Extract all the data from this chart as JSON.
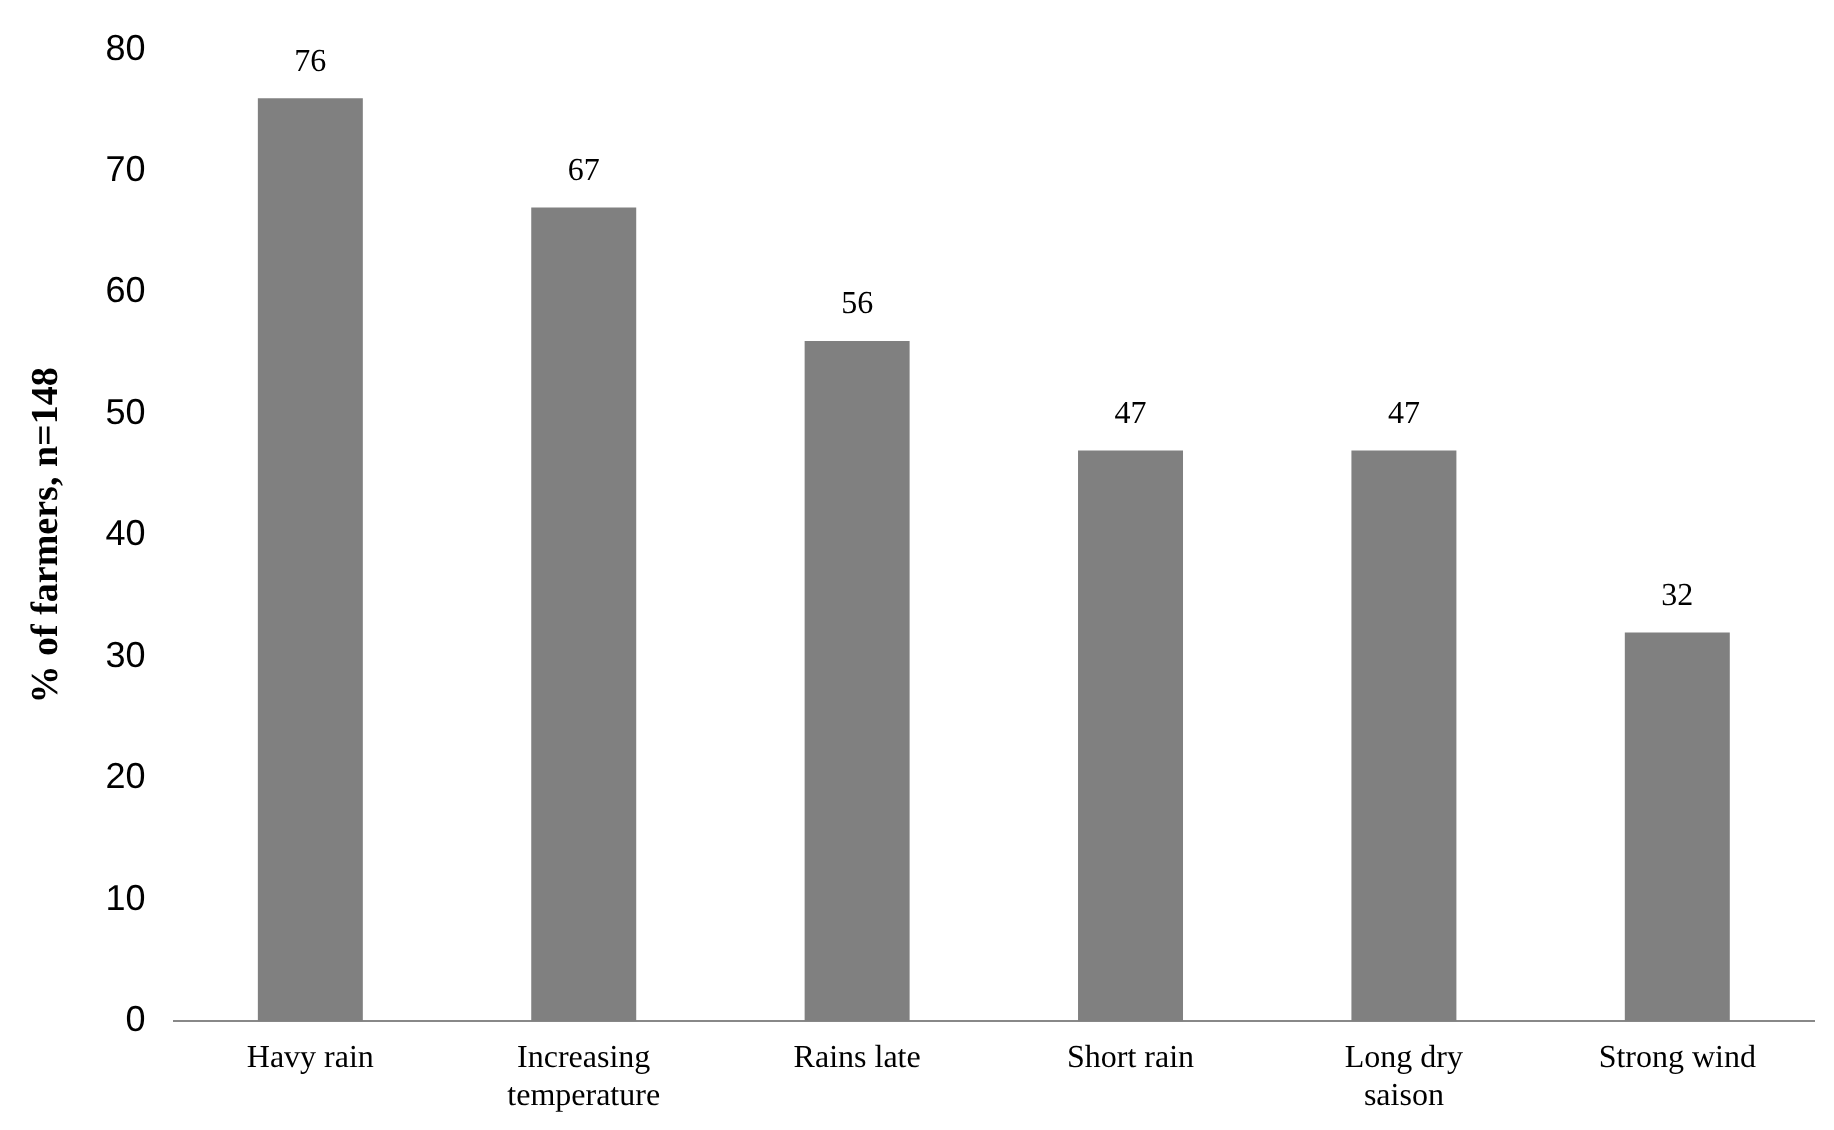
{
  "chart_data": {
    "type": "bar",
    "ylabel": "% of farmers, n=148",
    "categories": [
      "Havy rain",
      "Increasing temperature",
      "Rains late",
      "Short rain",
      "Long dry saison",
      "Strong wind"
    ],
    "values": [
      76,
      67,
      56,
      47,
      47,
      32
    ],
    "color": "#808080",
    "ylim": [
      0,
      80
    ],
    "yticks": [
      0,
      10,
      20,
      30,
      40,
      50,
      60,
      70,
      80
    ],
    "grid": false,
    "legend": false,
    "data_labels": true
  }
}
